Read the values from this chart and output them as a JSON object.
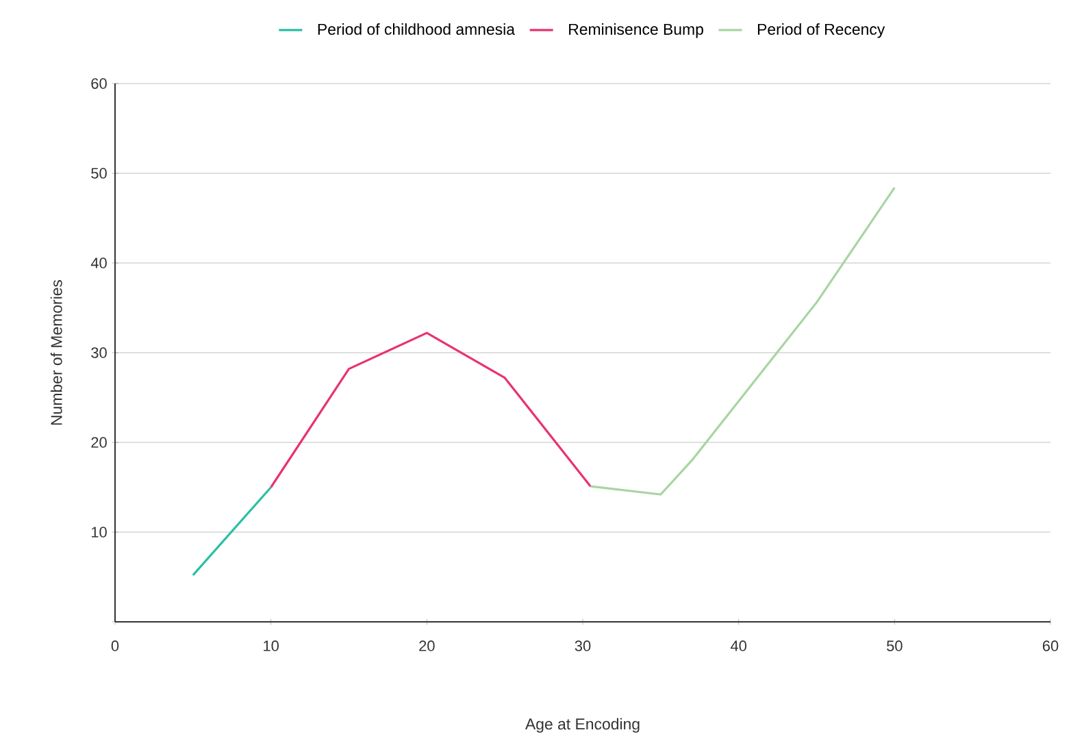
{
  "chart_data": {
    "type": "line",
    "xlabel": "Age at Encoding",
    "ylabel": "Number of Memories",
    "xlim": [
      0,
      60
    ],
    "xticks": [
      0,
      10,
      20,
      30,
      40,
      50,
      60
    ],
    "ylim": [
      0,
      60
    ],
    "yticks": [
      {
        "value": 0,
        "label": null
      },
      10,
      20,
      30,
      40,
      50,
      60
    ],
    "grid": "y",
    "legend": "top",
    "marker": "none",
    "line_style": "solid",
    "series": [
      {
        "name": "Period of childhood amnesia",
        "color": "#2bbfa4",
        "x": [
          5,
          10
        ],
        "values": [
          5.2,
          15
        ]
      },
      {
        "name": "Reminisence Bump",
        "color": "#e8336f",
        "x": [
          10,
          15,
          20,
          25,
          30.5
        ],
        "values": [
          15,
          28.2,
          32.2,
          27.2,
          15.1
        ]
      },
      {
        "name": "Period of Recency",
        "color": "#a8d5a2",
        "x": [
          30.5,
          35,
          37,
          45,
          50
        ],
        "values": [
          15.1,
          14.2,
          18,
          35.6,
          48.4
        ]
      }
    ]
  }
}
